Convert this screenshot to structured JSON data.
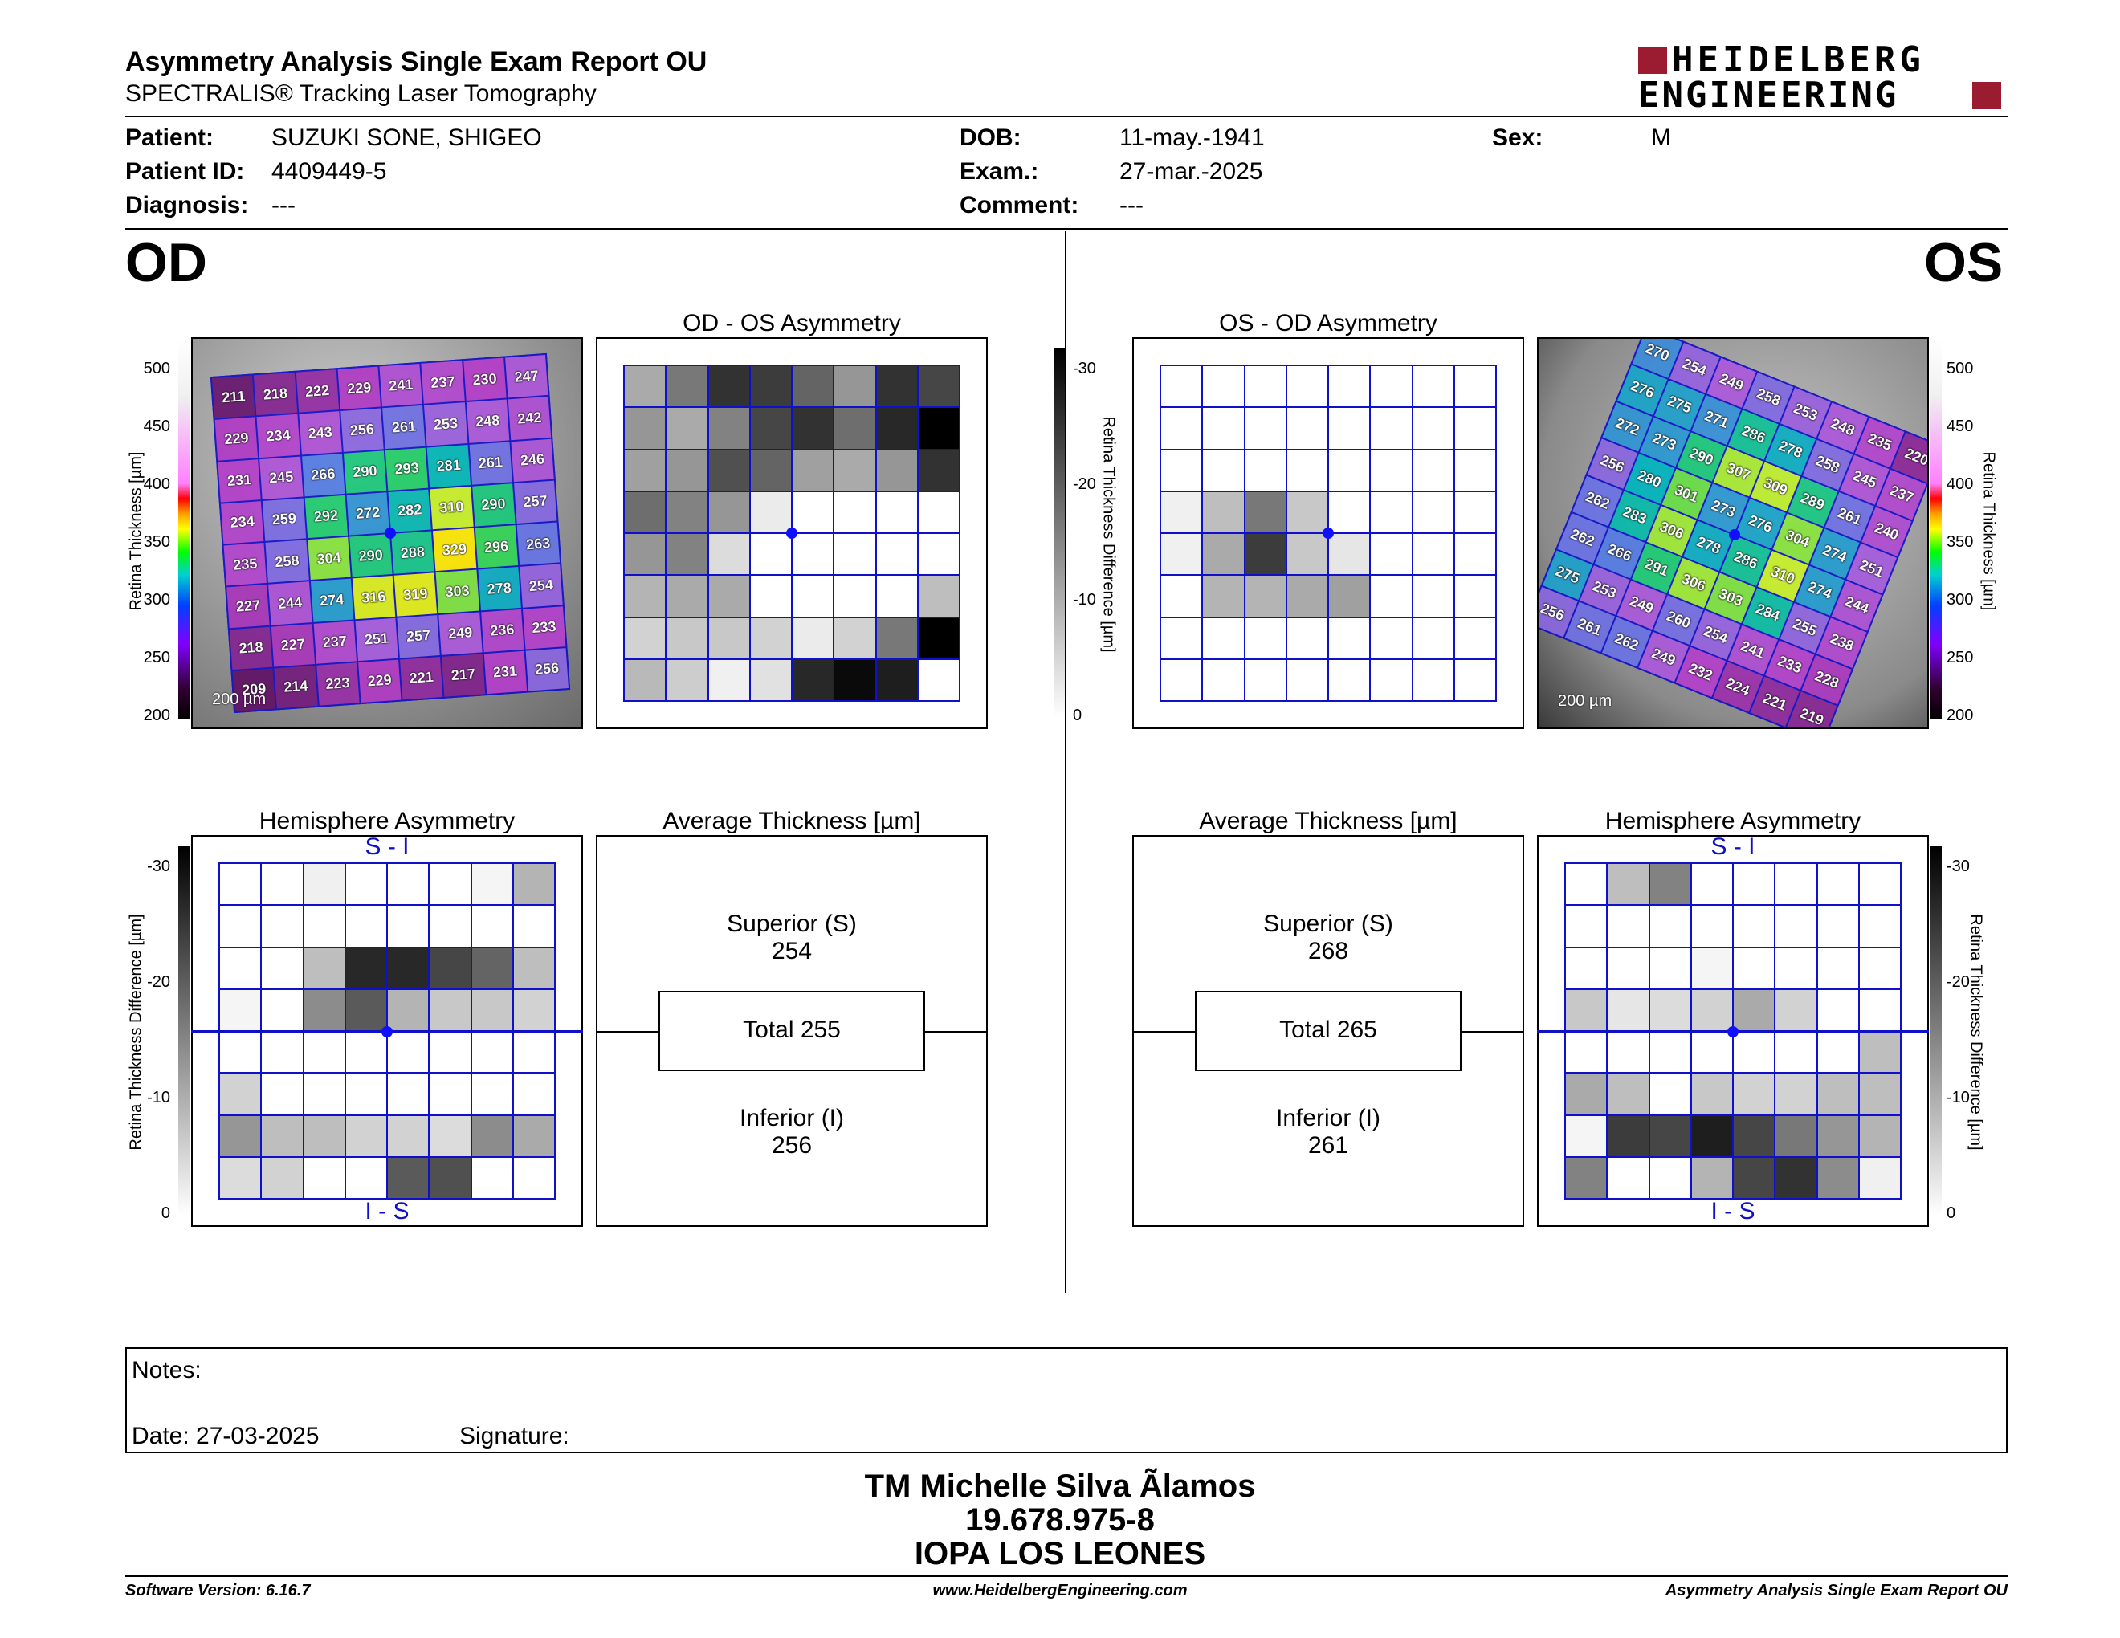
{
  "header": {
    "title": "Asymmetry Analysis Single Exam Report OU",
    "subtitle": "SPECTRALIS® Tracking Laser Tomography",
    "logo_line1": "HEIDELBERG",
    "logo_line2": "ENGINEERING",
    "brand_color": "#9b1b30"
  },
  "patient": {
    "patient_label": "Patient:",
    "patient_value": "SUZUKI SONE, SHIGEO",
    "id_label": "Patient ID:",
    "id_value": "4409449-5",
    "diagnosis_label": "Diagnosis:",
    "diagnosis_value": "---",
    "dob_label": "DOB:",
    "dob_value": "11-may.-1941",
    "exam_label": "Exam.:",
    "exam_value": "27-mar.-2025",
    "comment_label": "Comment:",
    "comment_value": "---",
    "sex_label": "Sex:",
    "sex_value": "M"
  },
  "od": {
    "eye": "OD",
    "asym_title": "OD - OS Asymmetry",
    "hemi_title": "Hemisphere Asymmetry",
    "avg_title": "Average Thickness [µm]",
    "superior_label": "Superior (S)",
    "superior_value": "254",
    "total": "Total 255",
    "inferior_label": "Inferior (I)",
    "inferior_value": "256",
    "hemi_top": "S - I",
    "hemi_bottom": "I - S",
    "scale_bar": "200 µm",
    "thickness": [
      [
        211,
        218,
        222,
        229,
        241,
        237,
        230,
        247
      ],
      [
        229,
        234,
        243,
        256,
        261,
        253,
        248,
        242
      ],
      [
        231,
        245,
        266,
        290,
        293,
        281,
        261,
        246
      ],
      [
        234,
        259,
        292,
        272,
        282,
        310,
        290,
        257
      ],
      [
        235,
        258,
        304,
        290,
        288,
        329,
        296,
        263
      ],
      [
        227,
        244,
        274,
        316,
        319,
        303,
        278,
        254
      ],
      [
        218,
        227,
        237,
        251,
        257,
        249,
        236,
        233
      ],
      [
        209,
        214,
        223,
        229,
        221,
        217,
        231,
        256
      ]
    ],
    "asym_gray": [
      [
        170,
        120,
        50,
        60,
        100,
        150,
        50,
        70
      ],
      [
        150,
        170,
        130,
        70,
        50,
        110,
        40,
        0
      ],
      [
        160,
        150,
        80,
        100,
        160,
        170,
        150,
        50
      ],
      [
        110,
        130,
        150,
        235,
        255,
        255,
        255,
        255
      ],
      [
        150,
        130,
        220,
        255,
        255,
        255,
        255,
        255
      ],
      [
        180,
        170,
        170,
        255,
        255,
        255,
        255,
        190
      ],
      [
        210,
        200,
        200,
        210,
        235,
        210,
        120,
        0
      ],
      [
        185,
        205,
        240,
        225,
        40,
        10,
        30,
        255
      ]
    ],
    "hemi_gray": [
      [
        255,
        255,
        240,
        255,
        255,
        255,
        245,
        180
      ],
      [
        255,
        255,
        255,
        255,
        255,
        255,
        255,
        255
      ],
      [
        255,
        255,
        190,
        40,
        40,
        70,
        100,
        190
      ],
      [
        245,
        255,
        140,
        90,
        180,
        200,
        200,
        210
      ],
      [
        255,
        255,
        255,
        255,
        255,
        255,
        255,
        255
      ],
      [
        210,
        255,
        255,
        255,
        255,
        255,
        255,
        255
      ],
      [
        150,
        190,
        190,
        210,
        210,
        220,
        140,
        170
      ],
      [
        220,
        210,
        255,
        255,
        90,
        80,
        255,
        255
      ]
    ]
  },
  "os": {
    "eye": "OS",
    "asym_title": "OS - OD Asymmetry",
    "hemi_title": "Hemisphere Asymmetry",
    "avg_title": "Average Thickness [µm]",
    "superior_label": "Superior (S)",
    "superior_value": "268",
    "total": "Total 265",
    "inferior_label": "Inferior (I)",
    "inferior_value": "261",
    "hemi_top": "S - I",
    "hemi_bottom": "I - S",
    "scale_bar": "200 µm",
    "thickness": [
      [
        270,
        254,
        249,
        258,
        253,
        248,
        235,
        220
      ],
      [
        276,
        275,
        271,
        286,
        278,
        258,
        245,
        237
      ],
      [
        272,
        273,
        290,
        307,
        309,
        289,
        261,
        240
      ],
      [
        256,
        280,
        301,
        273,
        276,
        304,
        274,
        251
      ],
      [
        262,
        283,
        306,
        278,
        286,
        310,
        274,
        244
      ],
      [
        262,
        266,
        291,
        306,
        303,
        284,
        255,
        238
      ],
      [
        275,
        253,
        249,
        260,
        254,
        241,
        233,
        228
      ],
      [
        256,
        261,
        262,
        249,
        232,
        224,
        221,
        219
      ]
    ],
    "asym_gray": [
      [
        255,
        255,
        255,
        255,
        255,
        255,
        255,
        255
      ],
      [
        255,
        255,
        255,
        255,
        255,
        255,
        255,
        255
      ],
      [
        255,
        255,
        255,
        255,
        255,
        255,
        255,
        255
      ],
      [
        240,
        190,
        120,
        200,
        255,
        255,
        255,
        255
      ],
      [
        240,
        170,
        60,
        200,
        230,
        255,
        255,
        255
      ],
      [
        255,
        180,
        180,
        170,
        160,
        255,
        255,
        255
      ],
      [
        255,
        255,
        255,
        255,
        255,
        255,
        255,
        255
      ],
      [
        255,
        255,
        255,
        255,
        255,
        255,
        255,
        255
      ]
    ],
    "hemi_gray": [
      [
        255,
        190,
        130,
        255,
        255,
        255,
        255,
        255
      ],
      [
        255,
        255,
        255,
        255,
        255,
        255,
        255,
        255
      ],
      [
        255,
        255,
        255,
        245,
        255,
        255,
        255,
        255
      ],
      [
        200,
        230,
        220,
        210,
        170,
        210,
        255,
        255
      ],
      [
        255,
        255,
        255,
        255,
        255,
        255,
        255,
        190
      ],
      [
        170,
        190,
        255,
        200,
        210,
        210,
        190,
        190
      ],
      [
        245,
        60,
        70,
        30,
        70,
        120,
        150,
        180
      ],
      [
        130,
        255,
        255,
        180,
        70,
        50,
        140,
        240
      ]
    ]
  },
  "thickness_scale": {
    "axis_label": "Retina Thickness [µm]",
    "ticks": [
      "500",
      "450",
      "400",
      "350",
      "300",
      "250",
      "200"
    ]
  },
  "diff_scale": {
    "axis_label": "Retina Thickness Difference [µm]",
    "ticks": [
      "-30",
      "-20",
      "-10",
      "0"
    ]
  },
  "notes": {
    "notes_label": "Notes:",
    "date_label": "Date: 27-03-2025",
    "signature_label": "Signature:"
  },
  "signer": {
    "name": "TM Michelle Silva Ãlamos",
    "rut": "19.678.975-8",
    "org": "IOPA LOS LEONES"
  },
  "footer": {
    "version": "Software Version: 6.16.7",
    "url": "www.HeidelbergEngineering.com",
    "report": "Asymmetry Analysis Single Exam Report OU"
  }
}
